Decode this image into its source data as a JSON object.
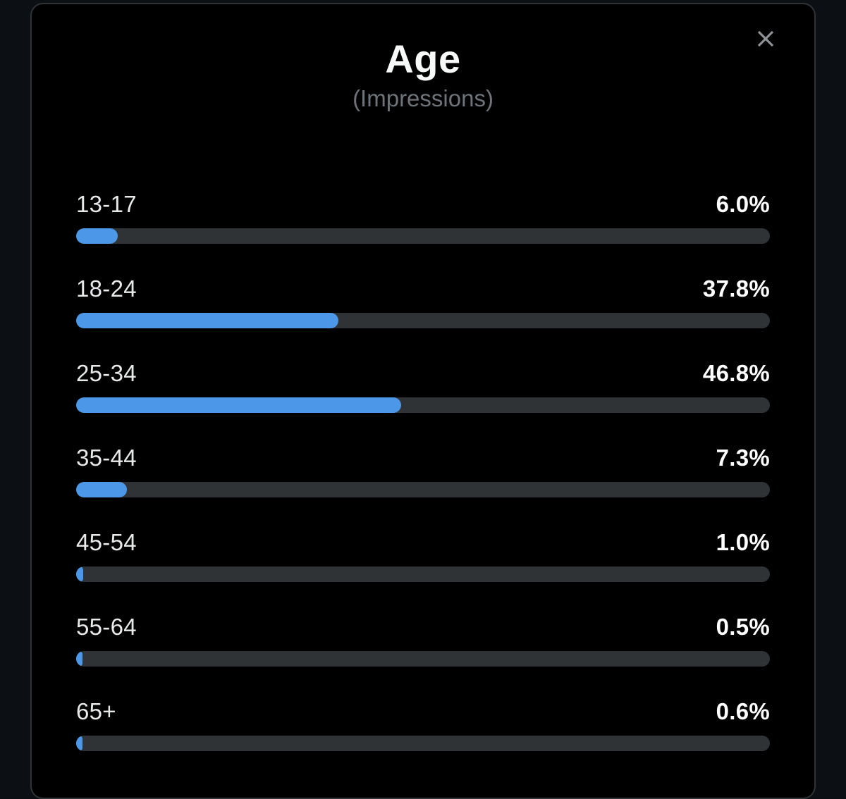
{
  "modal": {
    "title": "Age",
    "subtitle": "(Impressions)"
  },
  "icons": {
    "close": "close-x"
  },
  "chart_data": {
    "type": "bar",
    "orientation": "horizontal",
    "title": "Age",
    "subtitle": "(Impressions)",
    "unit": "%",
    "xlim": [
      0,
      100
    ],
    "grid": false,
    "legend": false,
    "categories": [
      "13-17",
      "18-24",
      "25-34",
      "35-44",
      "45-54",
      "55-64",
      "65+"
    ],
    "values": [
      6.0,
      37.8,
      46.8,
      7.3,
      1.0,
      0.5,
      0.6
    ],
    "value_labels": [
      "6.0%",
      "37.8%",
      "46.8%",
      "7.3%",
      "1.0%",
      "0.5%",
      "0.6%"
    ]
  },
  "colors": {
    "bar_fill": "#4d97e8",
    "bar_track": "#2f3336",
    "modal_background": "#000000",
    "outer_background": "#0c0f14",
    "modal_border": "#2f3336",
    "title_text": "#f7f9f9",
    "subtitle_text": "#6e7379",
    "label_text": "#e7e9ea",
    "value_text": "#ffffff",
    "close_icon": "#8f9397"
  }
}
